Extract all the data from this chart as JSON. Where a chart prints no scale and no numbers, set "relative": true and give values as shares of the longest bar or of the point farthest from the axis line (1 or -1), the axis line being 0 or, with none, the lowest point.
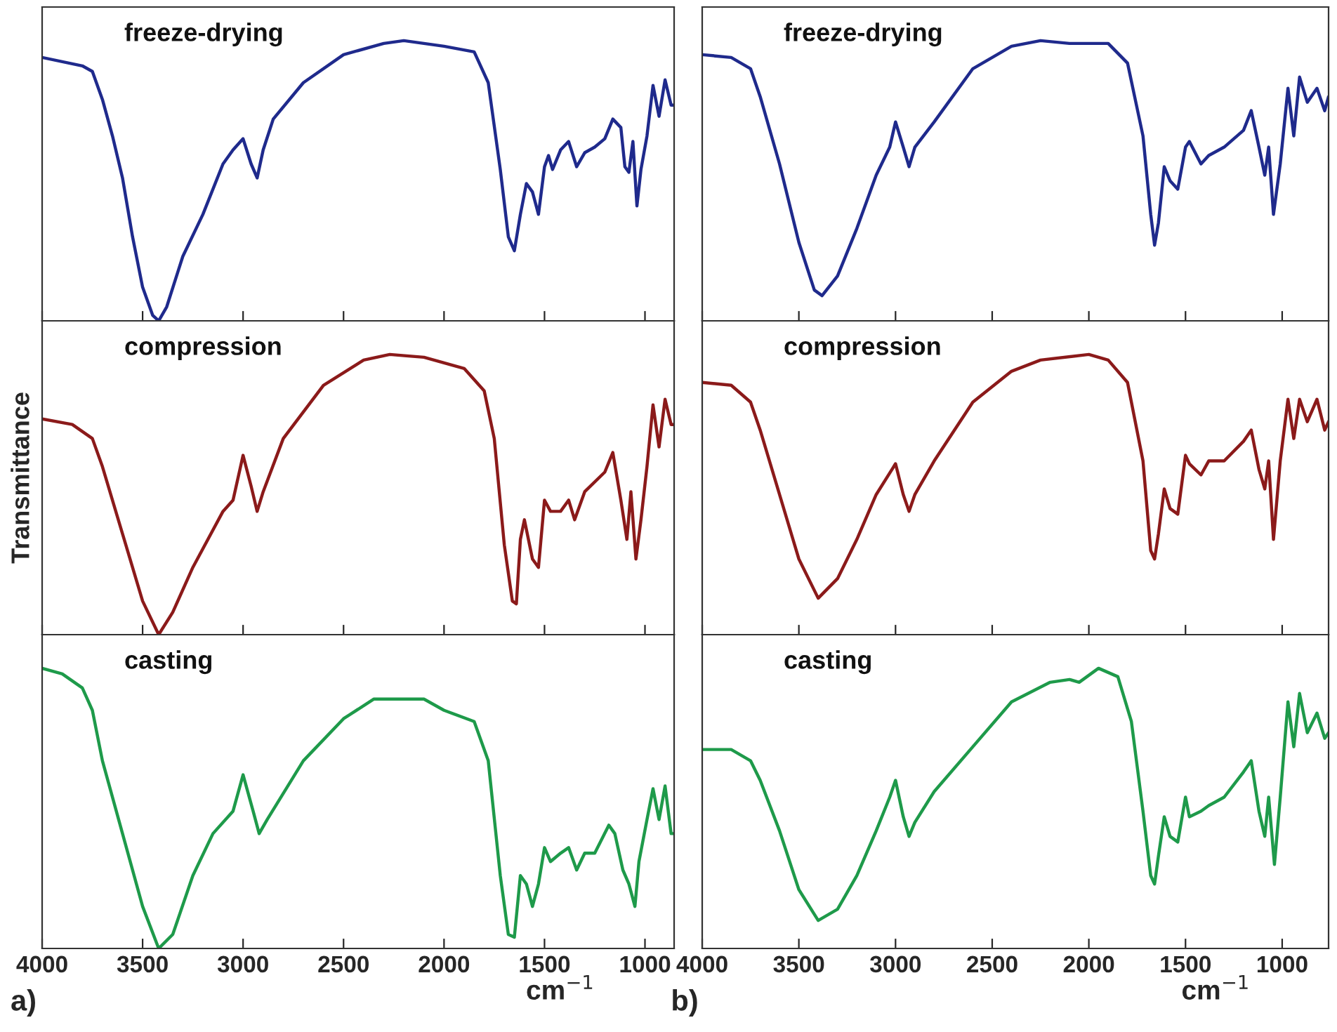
{
  "chart_data": [
    {
      "type": "line",
      "relative": true,
      "xlim": [
        4000,
        855
      ],
      "xticks": [
        4000,
        3500,
        3000,
        2500,
        2000,
        1500,
        1000
      ],
      "tick_labels": false,
      "grid": false,
      "legend": false,
      "line_style": "solid",
      "marker": "none",
      "series": [
        {
          "name": "freeze-drying",
          "color": "#1f2a8c",
          "x": [
            4000,
            3800,
            3750,
            3700,
            3650,
            3600,
            3550,
            3500,
            3450,
            3420,
            3380,
            3300,
            3200,
            3100,
            3050,
            3000,
            2960,
            2930,
            2900,
            2850,
            2700,
            2500,
            2300,
            2200,
            2000,
            1850,
            1780,
            1720,
            1680,
            1650,
            1620,
            1590,
            1560,
            1530,
            1500,
            1480,
            1460,
            1420,
            1380,
            1340,
            1300,
            1250,
            1200,
            1160,
            1120,
            1100,
            1080,
            1060,
            1040,
            1020,
            990,
            960,
            930,
            900,
            870,
            855
          ],
          "values": [
            0.94,
            0.91,
            0.89,
            0.79,
            0.66,
            0.51,
            0.3,
            0.12,
            0.02,
            0,
            0.05,
            0.23,
            0.38,
            0.56,
            0.61,
            0.65,
            0.56,
            0.51,
            0.61,
            0.72,
            0.85,
            0.95,
            0.99,
            1,
            0.98,
            0.96,
            0.85,
            0.54,
            0.3,
            0.25,
            0.38,
            0.49,
            0.46,
            0.38,
            0.55,
            0.59,
            0.54,
            0.61,
            0.64,
            0.55,
            0.6,
            0.62,
            0.65,
            0.72,
            0.69,
            0.55,
            0.53,
            0.64,
            0.41,
            0.54,
            0.66,
            0.84,
            0.73,
            0.86,
            0.77,
            0.77
          ]
        }
      ]
    },
    {
      "type": "line",
      "relative": true,
      "xlim": [
        4000,
        855
      ],
      "xticks": [
        4000,
        3500,
        3000,
        2500,
        2000,
        1500,
        1000
      ],
      "tick_labels": false,
      "grid": false,
      "legend": false,
      "line_style": "solid",
      "marker": "none",
      "ylabel": "Transmittance",
      "series": [
        {
          "name": "compression",
          "color": "#8b1a1a",
          "x": [
            4000,
            3850,
            3750,
            3700,
            3600,
            3500,
            3420,
            3350,
            3250,
            3100,
            3050,
            3000,
            2960,
            2930,
            2900,
            2800,
            2600,
            2400,
            2270,
            2100,
            1900,
            1800,
            1750,
            1700,
            1660,
            1640,
            1620,
            1600,
            1560,
            1530,
            1500,
            1470,
            1420,
            1380,
            1350,
            1300,
            1200,
            1160,
            1120,
            1090,
            1070,
            1045,
            1020,
            990,
            960,
            930,
            900,
            870,
            855
          ],
          "values": [
            0.77,
            0.75,
            0.7,
            0.6,
            0.36,
            0.12,
            0,
            0.08,
            0.24,
            0.44,
            0.48,
            0.64,
            0.53,
            0.44,
            0.51,
            0.7,
            0.89,
            0.98,
            1,
            0.99,
            0.95,
            0.87,
            0.7,
            0.32,
            0.12,
            0.11,
            0.34,
            0.41,
            0.27,
            0.24,
            0.48,
            0.44,
            0.44,
            0.48,
            0.41,
            0.51,
            0.58,
            0.65,
            0.48,
            0.34,
            0.51,
            0.27,
            0.41,
            0.6,
            0.82,
            0.67,
            0.84,
            0.75,
            0.75
          ]
        }
      ]
    },
    {
      "type": "line",
      "relative": true,
      "xlim": [
        4000,
        855
      ],
      "xticks": [
        4000,
        3500,
        3000,
        2500,
        2000,
        1500,
        1000
      ],
      "tick_labels": "x",
      "grid": false,
      "legend": false,
      "line_style": "solid",
      "marker": "none",
      "xlabel": "cm$^{−1}$",
      "annotations": [
        "a)"
      ],
      "series": [
        {
          "name": "casting",
          "color": "#1e9a4a",
          "x": [
            4000,
            3900,
            3800,
            3750,
            3700,
            3600,
            3500,
            3420,
            3350,
            3250,
            3150,
            3050,
            3000,
            2950,
            2920,
            2880,
            2700,
            2500,
            2350,
            2100,
            2000,
            1850,
            1780,
            1720,
            1680,
            1650,
            1620,
            1590,
            1560,
            1530,
            1500,
            1470,
            1420,
            1380,
            1340,
            1300,
            1250,
            1180,
            1150,
            1110,
            1080,
            1050,
            1030,
            990,
            960,
            930,
            900,
            870,
            855
          ],
          "values": [
            1,
            0.98,
            0.93,
            0.85,
            0.67,
            0.41,
            0.15,
            0,
            0.05,
            0.26,
            0.41,
            0.49,
            0.62,
            0.49,
            0.41,
            0.46,
            0.67,
            0.82,
            0.89,
            0.89,
            0.85,
            0.81,
            0.67,
            0.26,
            0.05,
            0.04,
            0.26,
            0.23,
            0.15,
            0.23,
            0.36,
            0.31,
            0.34,
            0.36,
            0.28,
            0.34,
            0.34,
            0.44,
            0.41,
            0.28,
            0.23,
            0.15,
            0.31,
            0.46,
            0.57,
            0.46,
            0.58,
            0.41,
            0.41
          ]
        }
      ]
    },
    {
      "type": "line",
      "relative": true,
      "xlim": [
        4000,
        760
      ],
      "xticks": [
        4000,
        3500,
        3000,
        2500,
        2000,
        1500,
        1000
      ],
      "tick_labels": false,
      "grid": false,
      "legend": false,
      "line_style": "solid",
      "marker": "none",
      "series": [
        {
          "name": "freeze-drying",
          "color": "#1f2a8c",
          "x": [
            4000,
            3850,
            3750,
            3700,
            3600,
            3500,
            3420,
            3380,
            3300,
            3200,
            3100,
            3030,
            3000,
            2960,
            2930,
            2900,
            2800,
            2600,
            2400,
            2250,
            2100,
            1900,
            1800,
            1720,
            1680,
            1660,
            1640,
            1610,
            1580,
            1540,
            1500,
            1480,
            1420,
            1380,
            1300,
            1200,
            1160,
            1120,
            1090,
            1070,
            1045,
            1010,
            970,
            940,
            910,
            870,
            820,
            780,
            760
          ],
          "values": [
            0.95,
            0.94,
            0.9,
            0.8,
            0.56,
            0.28,
            0.11,
            0.09,
            0.16,
            0.33,
            0.52,
            0.62,
            0.71,
            0.62,
            0.55,
            0.62,
            0.71,
            0.9,
            0.98,
            1,
            0.99,
            0.99,
            0.92,
            0.66,
            0.38,
            0.27,
            0.35,
            0.55,
            0.5,
            0.47,
            0.62,
            0.64,
            0.56,
            0.59,
            0.62,
            0.68,
            0.75,
            0.62,
            0.52,
            0.62,
            0.38,
            0.56,
            0.83,
            0.66,
            0.87,
            0.78,
            0.83,
            0.75,
            0.8
          ]
        }
      ]
    },
    {
      "type": "line",
      "relative": true,
      "xlim": [
        4000,
        760
      ],
      "xticks": [
        4000,
        3500,
        3000,
        2500,
        2000,
        1500,
        1000
      ],
      "tick_labels": false,
      "grid": false,
      "legend": false,
      "line_style": "solid",
      "marker": "none",
      "series": [
        {
          "name": "compression",
          "color": "#8b1a1a",
          "x": [
            4000,
            3850,
            3750,
            3700,
            3600,
            3500,
            3400,
            3300,
            3200,
            3100,
            3000,
            2960,
            2930,
            2900,
            2800,
            2600,
            2400,
            2250,
            2000,
            1900,
            1800,
            1720,
            1680,
            1660,
            1640,
            1610,
            1580,
            1540,
            1500,
            1480,
            1420,
            1380,
            1300,
            1200,
            1160,
            1120,
            1090,
            1070,
            1045,
            1010,
            970,
            940,
            910,
            870,
            820,
            780,
            760
          ],
          "values": [
            0.9,
            0.89,
            0.83,
            0.73,
            0.5,
            0.27,
            0.13,
            0.2,
            0.34,
            0.5,
            0.61,
            0.5,
            0.44,
            0.5,
            0.62,
            0.83,
            0.94,
            0.98,
            1,
            0.98,
            0.9,
            0.62,
            0.3,
            0.27,
            0.36,
            0.52,
            0.45,
            0.43,
            0.64,
            0.61,
            0.57,
            0.62,
            0.62,
            0.69,
            0.73,
            0.59,
            0.52,
            0.62,
            0.34,
            0.62,
            0.84,
            0.7,
            0.84,
            0.76,
            0.84,
            0.73,
            0.76
          ]
        }
      ]
    },
    {
      "type": "line",
      "relative": true,
      "xlim": [
        4000,
        760
      ],
      "xticks": [
        4000,
        3500,
        3000,
        2500,
        2000,
        1500,
        1000
      ],
      "tick_labels": "x",
      "grid": false,
      "legend": false,
      "line_style": "solid",
      "marker": "none",
      "xlabel": "cm$^{−1}$",
      "annotations": [
        "b)"
      ],
      "series": [
        {
          "name": "casting",
          "color": "#1e9a4a",
          "x": [
            4000,
            3850,
            3750,
            3700,
            3600,
            3500,
            3400,
            3300,
            3200,
            3100,
            3030,
            3000,
            2960,
            2930,
            2900,
            2800,
            2600,
            2400,
            2200,
            2100,
            2050,
            1950,
            1850,
            1780,
            1720,
            1680,
            1660,
            1640,
            1610,
            1580,
            1540,
            1500,
            1480,
            1420,
            1380,
            1300,
            1200,
            1160,
            1120,
            1090,
            1070,
            1040,
            1010,
            970,
            940,
            910,
            870,
            820,
            780,
            760
          ],
          "values": [
            0.71,
            0.71,
            0.67,
            0.6,
            0.42,
            0.21,
            0.1,
            0.14,
            0.26,
            0.42,
            0.54,
            0.6,
            0.47,
            0.4,
            0.45,
            0.56,
            0.72,
            0.88,
            0.95,
            0.96,
            0.95,
            1,
            0.97,
            0.81,
            0.49,
            0.26,
            0.23,
            0.33,
            0.47,
            0.4,
            0.38,
            0.54,
            0.47,
            0.49,
            0.51,
            0.54,
            0.63,
            0.67,
            0.49,
            0.4,
            0.54,
            0.3,
            0.54,
            0.88,
            0.72,
            0.91,
            0.77,
            0.84,
            0.75,
            0.77
          ]
        }
      ]
    }
  ]
}
